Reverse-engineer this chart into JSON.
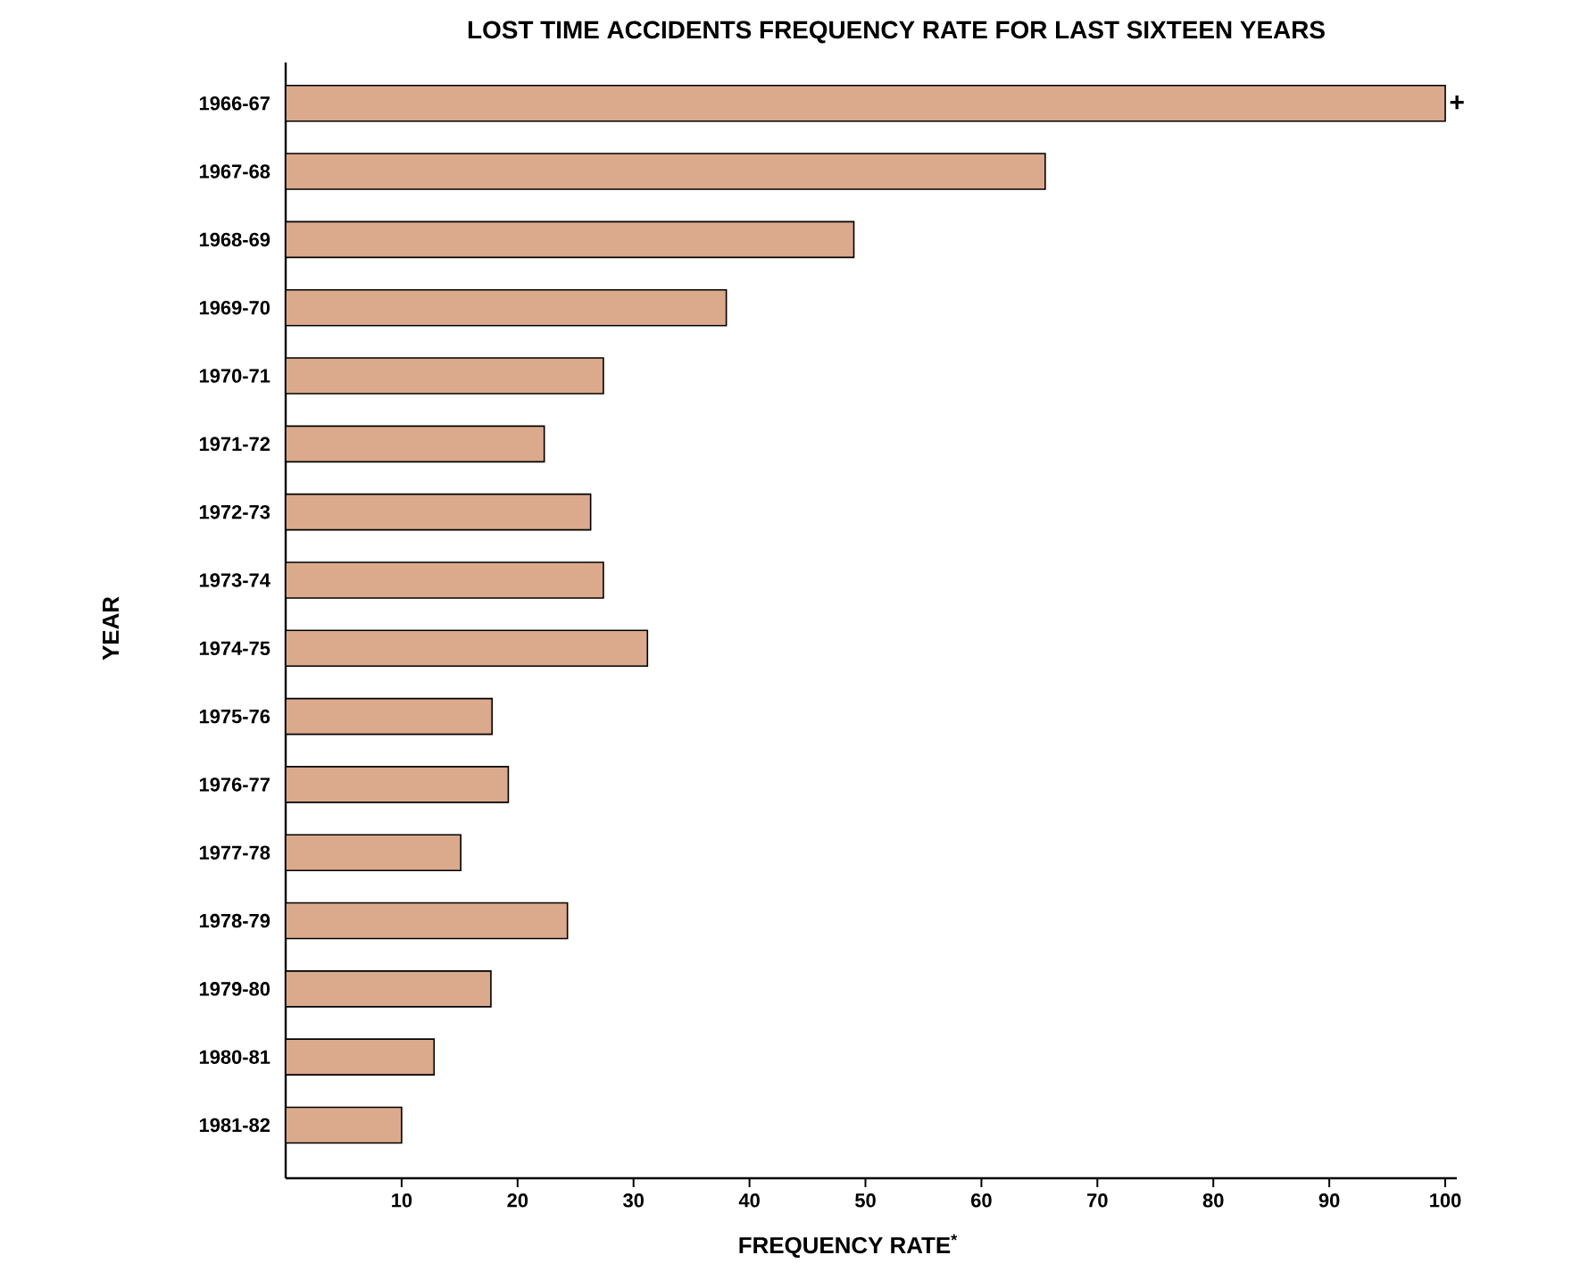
{
  "chart_data": {
    "type": "bar",
    "orientation": "horizontal",
    "title": "LOST TIME ACCIDENTS FREQUENCY RATE FOR LAST SIXTEEN YEARS",
    "xlabel": "FREQUENCY RATE$^{*}$",
    "ylabel": "YEAR",
    "categories": [
      "1966-67",
      "1967-68",
      "1968-69",
      "1969-70",
      "1970-71",
      "1971-72",
      "1972-73",
      "1973-74",
      "1974-75",
      "1975-76",
      "1976-77",
      "1977-78",
      "1978-79",
      "1979-80",
      "1980-81",
      "1981-82"
    ],
    "values": [
      100,
      65.5,
      49,
      38,
      27.4,
      22.3,
      26.3,
      27.4,
      31.2,
      17.8,
      19.2,
      15.1,
      24.3,
      17.7,
      12.8,
      10
    ],
    "color": "#dba98c",
    "xlim": [
      0,
      101
    ],
    "xticks": [
      10,
      20,
      30,
      40,
      50,
      60,
      70,
      80,
      90,
      100
    ],
    "annotations": [
      {
        "text": "+",
        "x": 100,
        "y": "1966-67"
      }
    ]
  }
}
